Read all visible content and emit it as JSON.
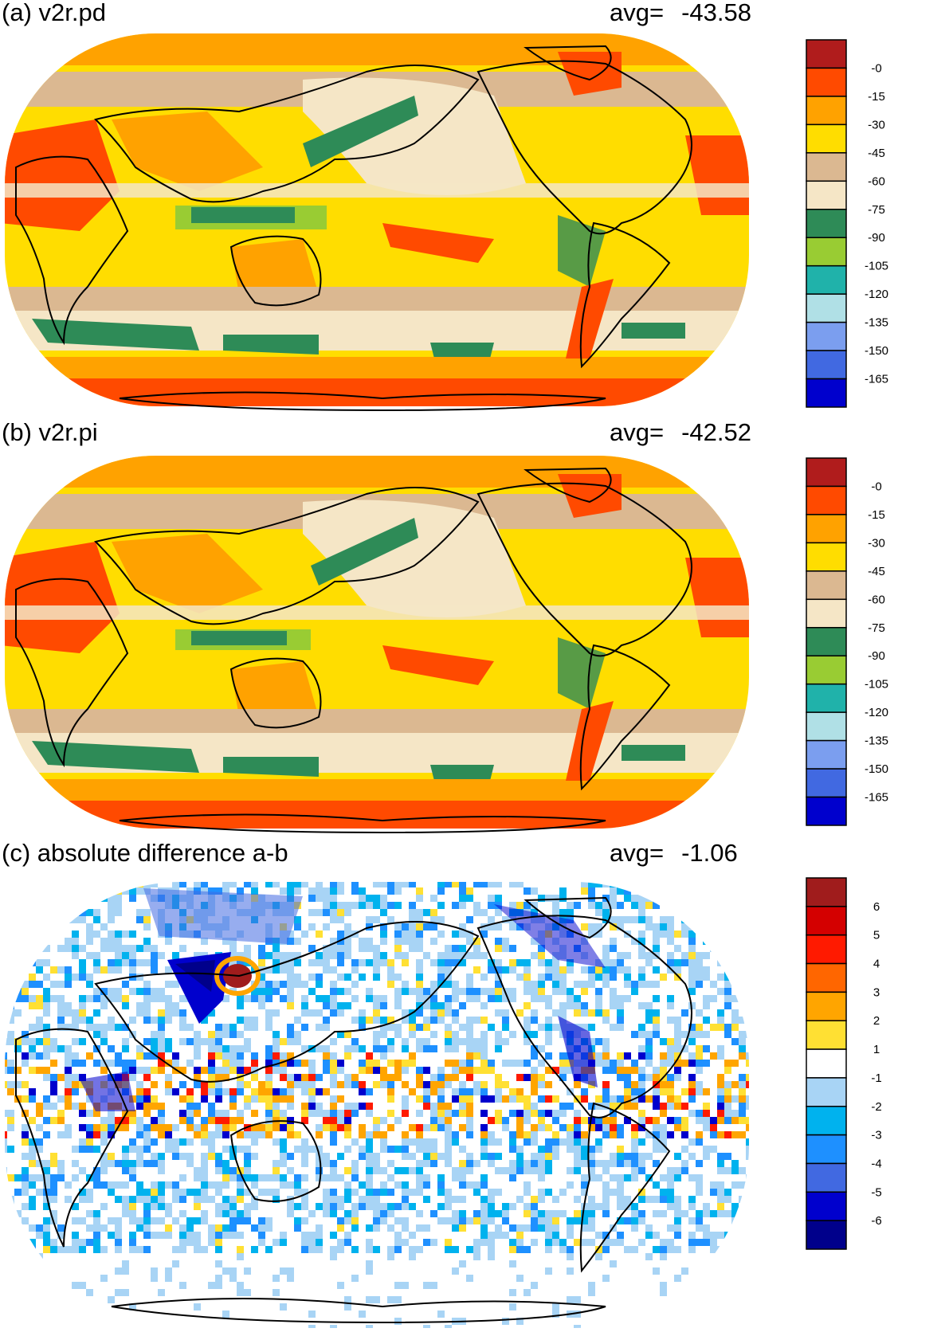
{
  "panels": [
    {
      "title": "(a) v2r.pd",
      "avg_label": "avg=",
      "avg_value": "-43.58",
      "colorbar": {
        "labels": [
          "-0",
          "-15",
          "-30",
          "-45",
          "-60",
          "-75",
          "-90",
          "-105",
          "-120",
          "-135",
          "-150",
          "-165"
        ],
        "colors": [
          "#b01c1c",
          "#ff4a00",
          "#ffa200",
          "#ffdd00",
          "#dbb891",
          "#f5e6c6",
          "#2e8b57",
          "#99cc33",
          "#20b2aa",
          "#b0e0e6",
          "#7b9eef",
          "#4169e1",
          "#0000cd"
        ]
      }
    },
    {
      "title": "(b) v2r.pi",
      "avg_label": "avg=",
      "avg_value": "-42.52",
      "colorbar": {
        "labels": [
          "-0",
          "-15",
          "-30",
          "-45",
          "-60",
          "-75",
          "-90",
          "-105",
          "-120",
          "-135",
          "-150",
          "-165"
        ],
        "colors": [
          "#b01c1c",
          "#ff4a00",
          "#ffa200",
          "#ffdd00",
          "#dbb891",
          "#f5e6c6",
          "#2e8b57",
          "#99cc33",
          "#20b2aa",
          "#b0e0e6",
          "#7b9eef",
          "#4169e1",
          "#0000cd"
        ]
      }
    },
    {
      "title": "(c) absolute difference a-b",
      "avg_label": "avg=",
      "avg_value": "-1.06",
      "colorbar": {
        "labels": [
          "6",
          "5",
          "4",
          "3",
          "2",
          "1",
          "-1",
          "-2",
          "-3",
          "-4",
          "-5",
          "-6"
        ],
        "colors": [
          "#a01c1c",
          "#d40000",
          "#ff1a00",
          "#ff6600",
          "#ffa500",
          "#ffe033",
          "#ffffff",
          "#a8d4f5",
          "#00b2ee",
          "#1e90ff",
          "#4169e1",
          "#0000cd",
          "#00008b"
        ]
      }
    }
  ]
}
